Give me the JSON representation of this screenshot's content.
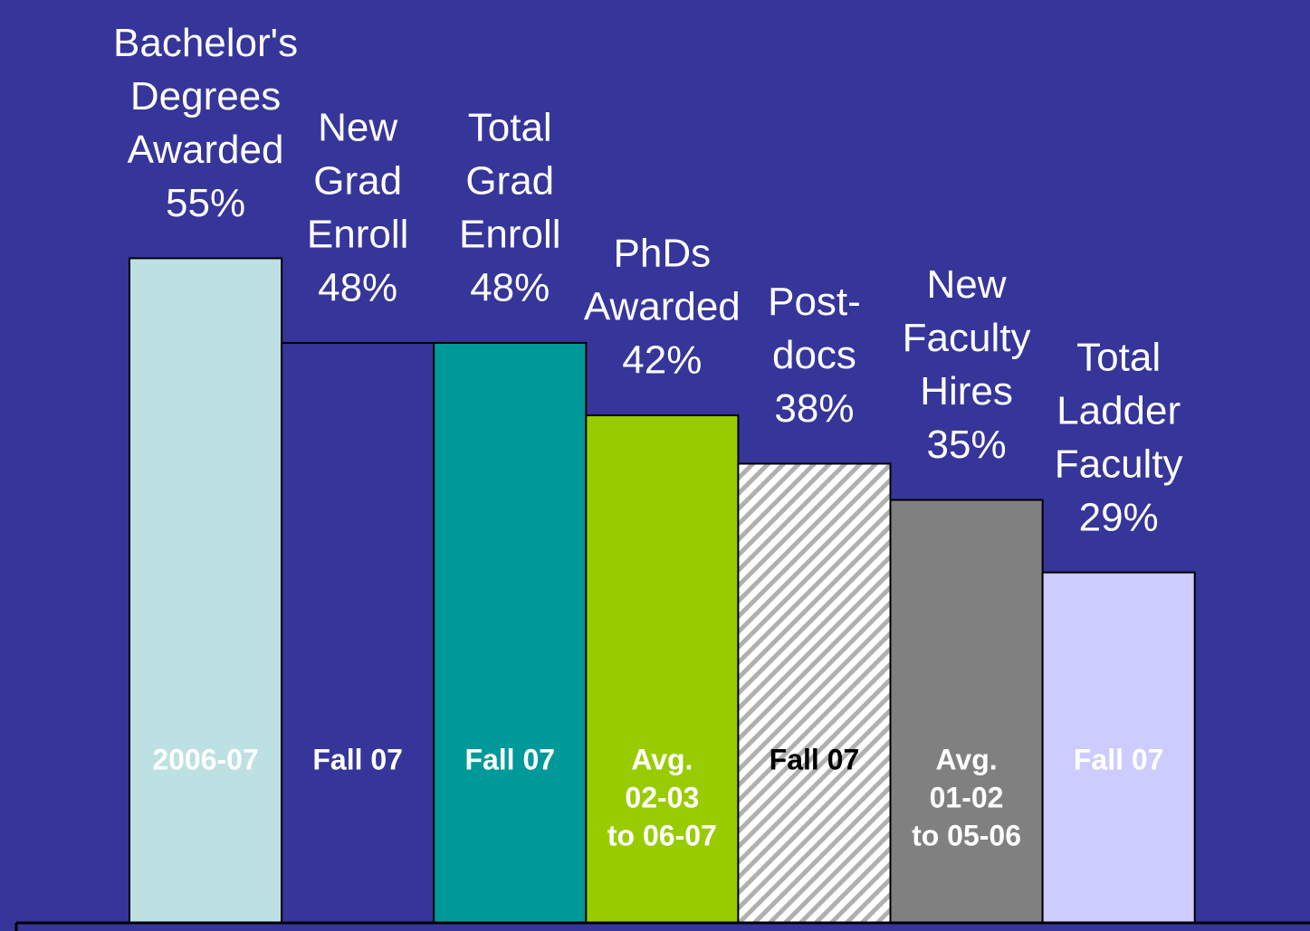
{
  "chart_data": {
    "type": "bar",
    "categories": [
      [
        "Bachelor's",
        "Degrees",
        "Awarded"
      ],
      [
        "New",
        "Grad",
        "Enroll"
      ],
      [
        "Total",
        "Grad",
        "Enroll"
      ],
      [
        "PhDs",
        "Awarded"
      ],
      [
        "Post-",
        "docs"
      ],
      [
        "New",
        "Faculty",
        "Hires"
      ],
      [
        "Total",
        "Ladder",
        "Faculty"
      ]
    ],
    "values": [
      55,
      48,
      48,
      42,
      38,
      35,
      29
    ],
    "value_labels": [
      "55%",
      "48%",
      "48%",
      "42%",
      "38%",
      "35%",
      "29%"
    ],
    "periods": [
      [
        "2006-07"
      ],
      [
        "Fall 07"
      ],
      [
        "Fall 07"
      ],
      [
        "Avg.",
        "02-03",
        "to 06-07"
      ],
      [
        "Fall 07"
      ],
      [
        "Avg.",
        "01-02",
        "to 05-06"
      ],
      [
        "Fall 07"
      ]
    ],
    "colors": [
      "#bde0e3",
      "#35359a",
      "#009999",
      "#99cc00",
      "hatch",
      "#808080",
      "#ccccff"
    ],
    "period_colors": [
      "#ffffff",
      "#ffffff",
      "#ffffff",
      "#ffffff",
      "#000000",
      "#ffffff",
      "#ffffff"
    ],
    "ylim": [
      0,
      76
    ]
  }
}
